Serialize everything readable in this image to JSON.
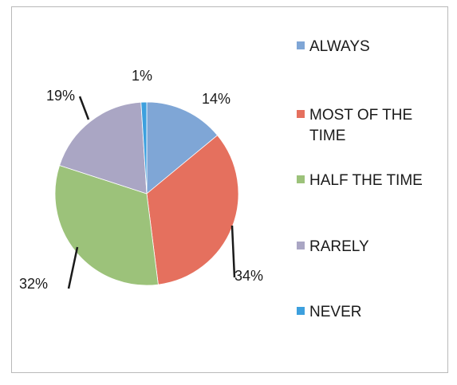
{
  "chart_data": {
    "type": "pie",
    "categories": [
      "ALWAYS",
      "MOST OF THE TIME",
      "HALF THE TIME",
      "RARELY",
      "NEVER"
    ],
    "values": [
      14,
      34,
      32,
      19,
      1
    ],
    "data_labels": [
      "14%",
      "34%",
      "32%",
      "19%",
      "1%"
    ],
    "colors": [
      "#7fa6d6",
      "#e5705e",
      "#9cc27a",
      "#aaa6c4",
      "#3da0de"
    ],
    "legend_position": "right",
    "title": ""
  }
}
